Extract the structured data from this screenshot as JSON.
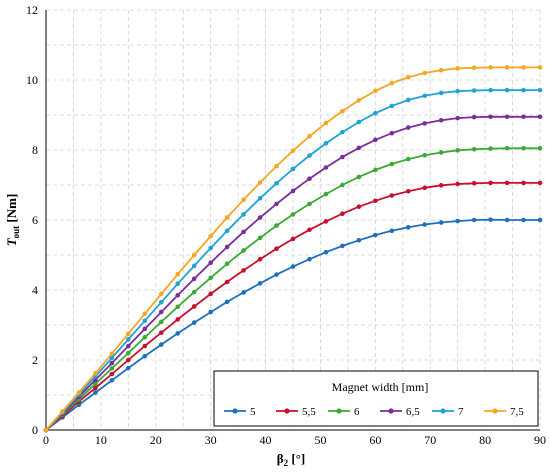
{
  "chart_data": {
    "type": "line",
    "xlabel": {
      "main": "β",
      "sub": "2",
      "unit": " [°]"
    },
    "ylabel": {
      "main": "T",
      "sub": "out",
      "unit": " [Nm]"
    },
    "xlim": [
      0,
      90
    ],
    "ylim": [
      0,
      12
    ],
    "x_ticks": [
      "0",
      "10",
      "20",
      "30",
      "40",
      "50",
      "60",
      "70",
      "80",
      "90"
    ],
    "y_ticks": [
      "0",
      "2",
      "4",
      "6",
      "8",
      "10",
      "12"
    ],
    "grid": true,
    "legend": {
      "title": "Magnet width [mm]",
      "placement": "bottom-right"
    },
    "x": [
      0,
      3,
      6,
      9,
      12,
      15,
      18,
      21,
      24,
      27,
      30,
      33,
      36,
      39,
      42,
      45,
      48,
      51,
      54,
      57,
      60,
      63,
      66,
      69,
      72,
      75,
      78,
      81,
      84,
      87,
      90
    ],
    "series": [
      {
        "name": "5",
        "color": "#1f6fbf",
        "values": [
          0,
          0.36,
          0.72,
          1.07,
          1.42,
          1.77,
          2.11,
          2.44,
          2.76,
          3.07,
          3.37,
          3.66,
          3.93,
          4.19,
          4.44,
          4.67,
          4.88,
          5.08,
          5.26,
          5.42,
          5.57,
          5.69,
          5.79,
          5.87,
          5.93,
          5.97,
          6.0,
          6.01,
          6.0,
          6.0,
          6.0
        ]
      },
      {
        "name": "5,5",
        "color": "#c8102e",
        "values": [
          0,
          0.4,
          0.81,
          1.2,
          1.6,
          2.0,
          2.4,
          2.78,
          3.16,
          3.53,
          3.89,
          4.23,
          4.56,
          4.88,
          5.18,
          5.46,
          5.72,
          5.96,
          6.18,
          6.38,
          6.55,
          6.7,
          6.82,
          6.92,
          6.99,
          7.03,
          7.05,
          7.06,
          7.06,
          7.06,
          7.06
        ]
      },
      {
        "name": "6",
        "color": "#3aaa35",
        "values": [
          0,
          0.44,
          0.88,
          1.32,
          1.76,
          2.2,
          2.65,
          3.09,
          3.52,
          3.94,
          4.35,
          4.75,
          5.13,
          5.49,
          5.84,
          6.16,
          6.46,
          6.74,
          7.0,
          7.23,
          7.43,
          7.6,
          7.74,
          7.85,
          7.93,
          7.99,
          8.02,
          8.04,
          8.05,
          8.05,
          8.05
        ]
      },
      {
        "name": "6,5",
        "color": "#7b2d9e",
        "values": [
          0,
          0.47,
          0.95,
          1.43,
          1.91,
          2.4,
          2.89,
          3.37,
          3.85,
          4.32,
          4.78,
          5.23,
          5.66,
          6.07,
          6.46,
          6.83,
          7.18,
          7.5,
          7.8,
          8.06,
          8.29,
          8.48,
          8.64,
          8.76,
          8.85,
          8.91,
          8.94,
          8.95,
          8.95,
          8.95,
          8.95
        ]
      },
      {
        "name": "7",
        "color": "#1fa3d6",
        "values": [
          0,
          0.5,
          1.01,
          1.53,
          2.06,
          2.59,
          3.12,
          3.65,
          4.18,
          4.69,
          5.2,
          5.69,
          6.16,
          6.62,
          7.05,
          7.46,
          7.84,
          8.19,
          8.51,
          8.8,
          9.05,
          9.26,
          9.43,
          9.55,
          9.63,
          9.68,
          9.7,
          9.71,
          9.71,
          9.71,
          9.71
        ]
      },
      {
        "name": "7,5",
        "color": "#f5a623",
        "values": [
          0,
          0.53,
          1.07,
          1.62,
          2.18,
          2.75,
          3.32,
          3.89,
          4.45,
          5.0,
          5.54,
          6.07,
          6.58,
          7.07,
          7.54,
          7.98,
          8.39,
          8.77,
          9.11,
          9.42,
          9.69,
          9.91,
          10.08,
          10.2,
          10.28,
          10.33,
          10.35,
          10.36,
          10.36,
          10.36,
          10.36
        ]
      }
    ]
  }
}
